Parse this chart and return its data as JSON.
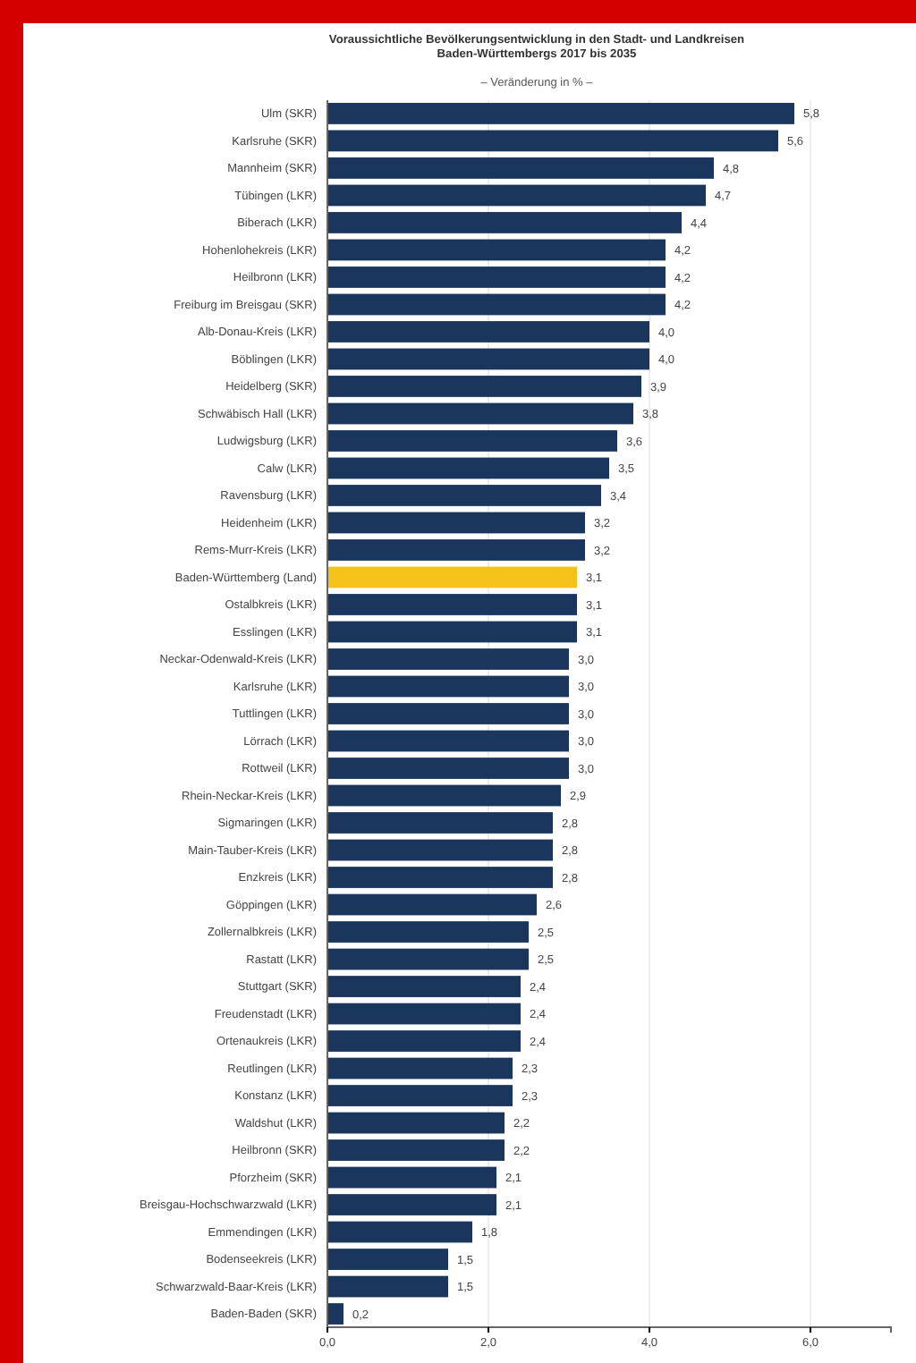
{
  "chart_data": {
    "type": "bar",
    "orientation": "horizontal",
    "title": "Voraussichtliche Bevölkerungsentwicklung in den Stadt- und Landkreisen Baden-Württembergs 2017 bis 2035",
    "subtitle": "– Veränderung in % –",
    "categories": [
      "Ulm (SKR)",
      "Karlsruhe (SKR)",
      "Mannheim (SKR)",
      "Tübingen (LKR)",
      "Biberach (LKR)",
      "Hohenlohekreis (LKR)",
      "Heilbronn (LKR)",
      "Freiburg im Breisgau (SKR)",
      "Alb-Donau-Kreis (LKR)",
      "Böblingen (LKR)",
      "Heidelberg (SKR)",
      "Schwäbisch Hall (LKR)",
      "Ludwigsburg (LKR)",
      "Calw (LKR)",
      "Ravensburg (LKR)",
      "Heidenheim (LKR)",
      "Rems-Murr-Kreis (LKR)",
      "Baden-Württemberg (Land)",
      "Ostalbkreis (LKR)",
      "Esslingen (LKR)",
      "Neckar-Odenwald-Kreis (LKR)",
      "Karlsruhe (LKR)",
      "Tuttlingen (LKR)",
      "Lörrach (LKR)",
      "Rottweil (LKR)",
      "Rhein-Neckar-Kreis (LKR)",
      "Sigmaringen (LKR)",
      "Main-Tauber-Kreis (LKR)",
      "Enzkreis (LKR)",
      "Göppingen (LKR)",
      "Zollernalbkreis (LKR)",
      "Rastatt (LKR)",
      "Stuttgart (SKR)",
      "Freudenstadt (LKR)",
      "Ortenaukreis (LKR)",
      "Reutlingen (LKR)",
      "Konstanz (LKR)",
      "Waldshut (LKR)",
      "Heilbronn (SKR)",
      "Pforzheim (SKR)",
      "Breisgau-Hochschwarzwald (LKR)",
      "Emmendingen (LKR)",
      "Bodenseekreis (LKR)",
      "Schwarzwald-Baar-Kreis (LKR)",
      "Baden-Baden (SKR)"
    ],
    "values": [
      5.8,
      5.6,
      4.8,
      4.7,
      4.4,
      4.2,
      4.2,
      4.2,
      4.0,
      4.0,
      3.9,
      3.8,
      3.6,
      3.5,
      3.4,
      3.2,
      3.2,
      3.1,
      3.1,
      3.1,
      3.0,
      3.0,
      3.0,
      3.0,
      3.0,
      2.9,
      2.8,
      2.8,
      2.8,
      2.6,
      2.5,
      2.5,
      2.4,
      2.4,
      2.4,
      2.3,
      2.3,
      2.2,
      2.2,
      2.1,
      2.1,
      1.8,
      1.5,
      1.5,
      0.2
    ],
    "value_labels": [
      "5,8",
      "5,6",
      "4,8",
      "4,7",
      "4,4",
      "4,2",
      "4,2",
      "4,2",
      "4,0",
      "4,0",
      "3,9",
      "3,8",
      "3,6",
      "3,5",
      "3,4",
      "3,2",
      "3,2",
      "3,1",
      "3,1",
      "3,1",
      "3,0",
      "3,0",
      "3,0",
      "3,0",
      "3,0",
      "2,9",
      "2,8",
      "2,8",
      "2,8",
      "2,6",
      "2,5",
      "2,5",
      "2,4",
      "2,4",
      "2,4",
      "2,3",
      "2,3",
      "2,2",
      "2,2",
      "2,1",
      "2,1",
      "1,8",
      "1,5",
      "1,5",
      "0,2"
    ],
    "colors": [
      "#1b365d",
      "#1b365d",
      "#1b365d",
      "#1b365d",
      "#1b365d",
      "#1b365d",
      "#1b365d",
      "#1b365d",
      "#1b365d",
      "#1b365d",
      "#1b365d",
      "#1b365d",
      "#1b365d",
      "#1b365d",
      "#1b365d",
      "#1b365d",
      "#1b365d",
      "#f5c21b",
      "#1b365d",
      "#1b365d",
      "#1b365d",
      "#1b365d",
      "#1b365d",
      "#1b365d",
      "#1b365d",
      "#1b365d",
      "#1b365d",
      "#1b365d",
      "#1b365d",
      "#1b365d",
      "#1b365d",
      "#1b365d",
      "#1b365d",
      "#1b365d",
      "#1b365d",
      "#1b365d",
      "#1b365d",
      "#1b365d",
      "#1b365d",
      "#1b365d",
      "#1b365d",
      "#1b365d",
      "#1b365d",
      "#1b365d",
      "#1b365d"
    ],
    "xlim": [
      0,
      7
    ],
    "xticks": [
      {
        "value": 0,
        "label": "0,0"
      },
      {
        "value": 2,
        "label": "2,0"
      },
      {
        "value": 4,
        "label": "4,0"
      },
      {
        "value": 6,
        "label": "6,0"
      }
    ],
    "grid": "x"
  }
}
